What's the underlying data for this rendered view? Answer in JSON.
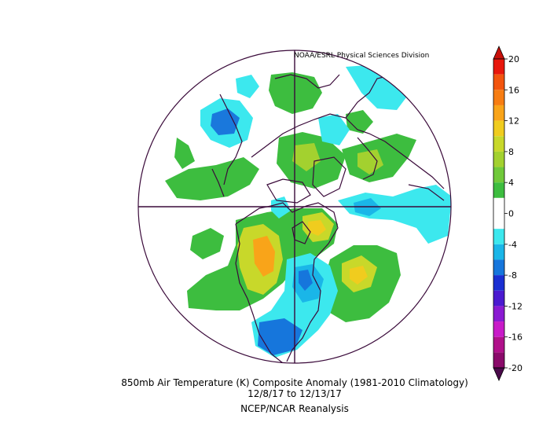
{
  "credit": "NOAA/ESRL Physical Sciences Division",
  "title": "850mb Air Temperature (K) Composite Anomaly (1981-2010 Climatology)",
  "date_range": "12/8/17  to 12/13/17",
  "source": "NCEP/NCAR Reanalysis",
  "colorbar": {
    "levels": [
      20,
      18,
      16,
      14,
      12,
      10,
      8,
      6,
      4,
      2,
      0,
      -2,
      -4,
      -6,
      -8,
      -10,
      -12,
      -14,
      -16,
      -18,
      -20
    ],
    "tick_labels": [
      "20",
      "16",
      "12",
      "8",
      "4",
      "0",
      "-4",
      "-8",
      "-12",
      "-16",
      "-20"
    ],
    "colors": [
      "#e8170c",
      "#f2540e",
      "#f77d12",
      "#f9a419",
      "#f0cc1e",
      "#c8d82a",
      "#a3d12f",
      "#70c93a",
      "#3dbd3f",
      "#ffffff",
      "#ffffff",
      "#3ce8ee",
      "#1ab6e8",
      "#1676dc",
      "#1a2fd2",
      "#4b1ad0",
      "#8a1ad2",
      "#c81ac8",
      "#b0108a",
      "#8a0a6a"
    ],
    "top_arrow_color": "#c8100a",
    "bottom_arrow_color": "#4a0a4a"
  }
}
